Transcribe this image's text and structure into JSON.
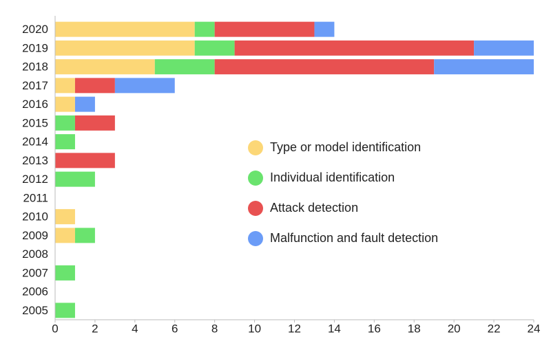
{
  "chart_data": {
    "type": "stacked-barh",
    "categories": [
      "2020",
      "2019",
      "2018",
      "2017",
      "2016",
      "2015",
      "2014",
      "2013",
      "2012",
      "2011",
      "2010",
      "2009",
      "2008",
      "2007",
      "2006",
      "2005"
    ],
    "series": [
      {
        "name": "Type or model identification",
        "color": "#fcd777",
        "values": [
          7,
          7,
          5,
          1,
          1,
          0,
          0,
          0,
          0,
          0,
          1,
          1,
          0,
          0,
          0,
          0
        ]
      },
      {
        "name": "Individual identification",
        "color": "#6ae36e",
        "values": [
          1,
          2,
          3,
          0,
          0,
          1,
          1,
          0,
          2,
          0,
          0,
          1,
          0,
          1,
          0,
          1
        ]
      },
      {
        "name": "Attack detection",
        "color": "#e85151",
        "values": [
          5,
          12,
          11,
          2,
          0,
          2,
          0,
          3,
          0,
          0,
          0,
          0,
          0,
          0,
          0,
          0
        ]
      },
      {
        "name": "Malfunction and fault detection",
        "color": "#6b9cf7",
        "values": [
          1,
          3,
          5,
          3,
          1,
          0,
          0,
          0,
          0,
          0,
          0,
          0,
          0,
          0,
          0,
          0
        ]
      }
    ],
    "xlim": [
      0,
      24
    ],
    "xticks": [
      0,
      2,
      4,
      6,
      8,
      10,
      12,
      14,
      16,
      18,
      20,
      22,
      24
    ],
    "grid": false
  }
}
